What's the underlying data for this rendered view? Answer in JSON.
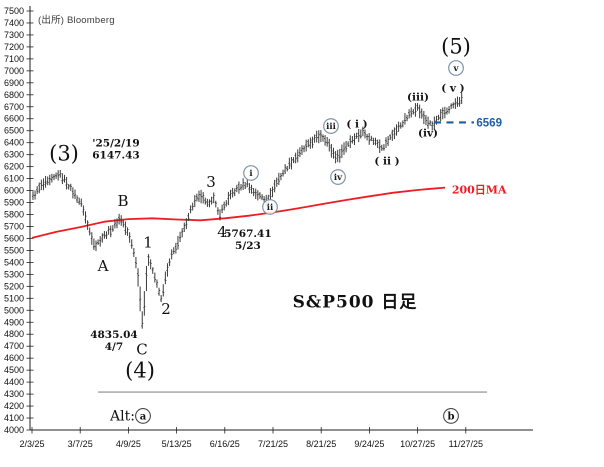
{
  "source_label": "(出所) Bloomberg",
  "title": "S&P500 日足",
  "colors": {
    "bars": "#3a3a3a",
    "axis": "#222222",
    "ma_red": "#ee1c25",
    "level_blue": "#1d5fa7",
    "circle_stroke": "#7e94a9",
    "support_gray": "#8a8a8a"
  },
  "chart_data": {
    "type": "line",
    "mark": "daily-ohlc-bars",
    "title": "S&P500 日足",
    "source": "(出所) Bloomberg",
    "grid": false,
    "legend": false,
    "x_ticks": [
      "2/3/25",
      "3/7/25",
      "4/9/25",
      "5/13/25",
      "6/16/25",
      "7/21/25",
      "8/21/25",
      "9/24/25",
      "10/27/25",
      "11/27/25"
    ],
    "y_axis": {
      "min": 4000,
      "max": 7500,
      "step": 100
    },
    "price_path_tp": [
      [
        0.02,
        5950
      ],
      [
        0.19,
        6040
      ],
      [
        0.39,
        6085
      ],
      [
        0.56,
        6140
      ],
      [
        0.71,
        6075
      ],
      [
        0.87,
        5975
      ],
      [
        1.04,
        5880
      ],
      [
        1.16,
        5700
      ],
      [
        1.31,
        5535
      ],
      [
        1.45,
        5605
      ],
      [
        1.66,
        5680
      ],
      [
        1.83,
        5772
      ],
      [
        1.99,
        5645
      ],
      [
        2.1,
        5520
      ],
      [
        2.2,
        5310
      ],
      [
        2.26,
        5020
      ],
      [
        2.3,
        4840
      ],
      [
        2.36,
        5210
      ],
      [
        2.41,
        5465
      ],
      [
        2.51,
        5330
      ],
      [
        2.61,
        5190
      ],
      [
        2.68,
        5085
      ],
      [
        2.78,
        5290
      ],
      [
        2.9,
        5460
      ],
      [
        3.03,
        5565
      ],
      [
        3.15,
        5672
      ],
      [
        3.28,
        5830
      ],
      [
        3.4,
        5925
      ],
      [
        3.51,
        5955
      ],
      [
        3.63,
        5880
      ],
      [
        3.76,
        5945
      ],
      [
        3.88,
        5795
      ],
      [
        4.0,
        5880
      ],
      [
        4.15,
        5975
      ],
      [
        4.31,
        6030
      ],
      [
        4.46,
        6058
      ],
      [
        4.58,
        5995
      ],
      [
        4.73,
        5952
      ],
      [
        4.9,
        5918
      ],
      [
        5.06,
        6060
      ],
      [
        5.21,
        6150
      ],
      [
        5.37,
        6235
      ],
      [
        5.52,
        6295
      ],
      [
        5.68,
        6365
      ],
      [
        5.83,
        6415
      ],
      [
        5.98,
        6465
      ],
      [
        6.1,
        6425
      ],
      [
        6.22,
        6330
      ],
      [
        6.33,
        6272
      ],
      [
        6.47,
        6350
      ],
      [
        6.62,
        6420
      ],
      [
        6.74,
        6455
      ],
      [
        6.87,
        6490
      ],
      [
        7.0,
        6440
      ],
      [
        7.15,
        6400
      ],
      [
        7.28,
        6360
      ],
      [
        7.43,
        6440
      ],
      [
        7.57,
        6510
      ],
      [
        7.72,
        6580
      ],
      [
        7.86,
        6650
      ],
      [
        7.99,
        6700
      ],
      [
        8.11,
        6620
      ],
      [
        8.22,
        6570
      ],
      [
        8.3,
        6538
      ],
      [
        8.4,
        6590
      ],
      [
        8.55,
        6645
      ],
      [
        8.7,
        6700
      ],
      [
        8.84,
        6740
      ],
      [
        8.93,
        6765
      ]
    ],
    "ma200": {
      "label": "200日MA",
      "color": "#ee1c25",
      "label_t": 8.71,
      "label_p": 6005,
      "points_tp": [
        [
          0.0,
          5605
        ],
        [
          0.5,
          5655
        ],
        [
          1.0,
          5695
        ],
        [
          1.5,
          5740
        ],
        [
          2.0,
          5762
        ],
        [
          2.5,
          5768
        ],
        [
          3.0,
          5758
        ],
        [
          3.5,
          5752
        ],
        [
          4.0,
          5768
        ],
        [
          4.5,
          5790
        ],
        [
          5.0,
          5818
        ],
        [
          5.5,
          5850
        ],
        [
          6.0,
          5885
        ],
        [
          6.5,
          5920
        ],
        [
          7.0,
          5952
        ],
        [
          7.5,
          5982
        ],
        [
          8.0,
          6005
        ],
        [
          8.3,
          6016
        ],
        [
          8.57,
          6025
        ]
      ]
    },
    "level_6569": {
      "value": 6569,
      "label": "6569",
      "t_start": 8.34,
      "t_end": 9.17,
      "label_t": 9.22
    },
    "support_line": {
      "price": 4317,
      "t_start": 1.37,
      "t_end": 9.44
    },
    "wave_labels": [
      {
        "text": "(3)",
        "t": 0.664,
        "p": 6314,
        "size": "lg"
      },
      {
        "text": "B",
        "t": 1.888,
        "p": 5913,
        "size": "md"
      },
      {
        "text": "A",
        "t": 1.473,
        "p": 5370,
        "size": "md"
      },
      {
        "text": "1",
        "t": 2.407,
        "p": 5570,
        "size": "md"
      },
      {
        "text": "2",
        "t": 2.78,
        "p": 5011,
        "size": "md"
      },
      {
        "text": "C",
        "t": 2.282,
        "p": 4676,
        "size": "md"
      },
      {
        "text": "(4)",
        "t": 2.241,
        "p": 4501,
        "size": "lg"
      },
      {
        "text": "3",
        "t": 3.714,
        "p": 6072,
        "size": "md"
      },
      {
        "text": "4",
        "t": 3.942,
        "p": 5654,
        "size": "md"
      },
      {
        "text": "(5)",
        "t": 8.797,
        "p": 7208,
        "size": "lg"
      },
      {
        "text": "( v )",
        "t": 8.734,
        "p": 6857,
        "size": "sm"
      },
      {
        "text": "(iii)",
        "t": 8.008,
        "p": 6782,
        "size": "sm"
      },
      {
        "text": "(iv)",
        "t": 8.216,
        "p": 6481,
        "size": "sm"
      },
      {
        "text": "( i )",
        "t": 6.743,
        "p": 6556,
        "size": "sm"
      },
      {
        "text": "( ii )",
        "t": 7.365,
        "p": 6247,
        "size": "sm"
      }
    ],
    "circled_labels": [
      {
        "text": "i",
        "t": 4.544,
        "p": 6147
      },
      {
        "text": "ii",
        "t": 4.938,
        "p": 5863
      },
      {
        "text": "iii",
        "t": 6.203,
        "p": 6539
      },
      {
        "text": "iv",
        "t": 6.349,
        "p": 6113
      },
      {
        "text": "v",
        "t": 8.797,
        "p": 7024
      }
    ],
    "price_annotations": [
      {
        "lines": [
          "'25/2/19",
          "6147.43"
        ],
        "t": 1.25,
        "p": 6351,
        "align": "left"
      },
      {
        "lines": [
          "4835.04",
          "4/7"
        ],
        "t": 1.7,
        "p": 4752,
        "align": "center"
      },
      {
        "lines": [
          "5767.41",
          "5/23"
        ],
        "t": 4.48,
        "p": 5595,
        "align": "center"
      }
    ],
    "alt_row": {
      "prefix": "Alt:",
      "a_label": "a",
      "b_label": "b",
      "t_prefix": 1.618,
      "t_a": 2.303,
      "t_b": 8.693,
      "p": 4130
    },
    "key_values": [
      {
        "label": "(3) top",
        "date": "'25/2/19",
        "price": 6147.43
      },
      {
        "label": "(4) / C bottom",
        "date": "4/7",
        "price": 4835.04
      },
      {
        "label": "wave 4 low",
        "date": "5/23",
        "price": 5767.41
      },
      {
        "label": "(iv) level",
        "price": 6569
      }
    ]
  }
}
